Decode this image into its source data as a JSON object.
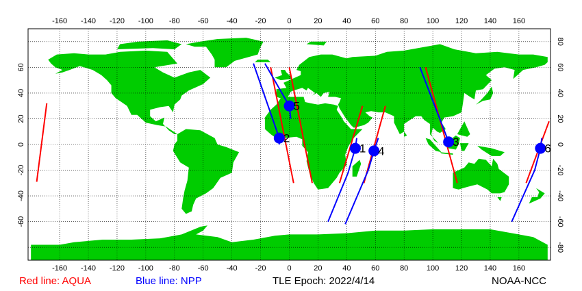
{
  "legend": {
    "aqua_label": "Red line: AQUA",
    "npp_label": "Blue line: NPP",
    "epoch_label": "TLE Epoch: 2022/4/14",
    "credit": "NOAA-NCC"
  },
  "colors": {
    "aqua": "#ff0000",
    "npp": "#0000ff",
    "land": "#00cc00",
    "ocean": "#ffffff",
    "marker": "#0000ff"
  },
  "axes": {
    "lon_ticks": [
      "-160",
      "-140",
      "-120",
      "-100",
      "-80",
      "-60",
      "-40",
      "-20",
      "0",
      "20",
      "40",
      "60",
      "80",
      "100",
      "120",
      "140",
      "160"
    ],
    "lat_ticks": [
      "-60",
      "-40",
      "-20",
      "0",
      "20",
      "40",
      "60"
    ],
    "lat_ticks_left": [
      "80",
      "60",
      "40",
      "20",
      "0",
      "-20",
      "-40",
      "-60",
      "-80"
    ],
    "lat_ticks_right": [
      "80",
      "60",
      "40",
      "20",
      "0",
      "-20",
      "-40",
      "-60",
      "-80"
    ],
    "grid": "dotted"
  },
  "passes": [
    {
      "label": "1",
      "lon": 46,
      "lat": -3
    },
    {
      "label": "2",
      "lon": -7,
      "lat": 5
    },
    {
      "label": "3",
      "lon": 111,
      "lat": 2
    },
    {
      "label": "4",
      "lon": 59,
      "lat": -5
    },
    {
      "label": "5",
      "lon": 0,
      "lat": 30
    },
    {
      "label": "6",
      "lon": 175,
      "lat": -3
    }
  ],
  "aqua_tracks": [
    [
      [
        -176,
        -29
      ],
      [
        -169,
        32
      ]
    ],
    [
      [
        -13,
        60
      ],
      [
        3,
        -30
      ]
    ],
    [
      [
        0,
        60
      ],
      [
        16,
        -30
      ]
    ],
    [
      [
        35,
        -30
      ],
      [
        51,
        30
      ]
    ],
    [
      [
        52,
        -30
      ],
      [
        67,
        30
      ]
    ],
    [
      [
        95,
        60
      ],
      [
        117,
        -30
      ]
    ],
    [
      [
        165,
        -30
      ],
      [
        181,
        18
      ]
    ]
  ],
  "npp_tracks": [
    [
      [
        -25,
        63
      ],
      [
        -7,
        5
      ],
      [
        -7,
        0
      ]
    ],
    [
      [
        -17,
        63
      ],
      [
        0,
        30
      ],
      [
        1,
        20
      ]
    ],
    [
      [
        27,
        -60
      ],
      [
        41,
        -22
      ],
      [
        46,
        -3
      ],
      [
        47,
        5
      ]
    ],
    [
      [
        39,
        -62
      ],
      [
        55,
        -20
      ],
      [
        59,
        -5
      ],
      [
        62,
        5
      ]
    ],
    [
      [
        91,
        60
      ],
      [
        111,
        2
      ],
      [
        112,
        0
      ]
    ],
    [
      [
        155,
        -60
      ],
      [
        171,
        -20
      ],
      [
        175,
        -3
      ],
      [
        176,
        5
      ]
    ]
  ]
}
